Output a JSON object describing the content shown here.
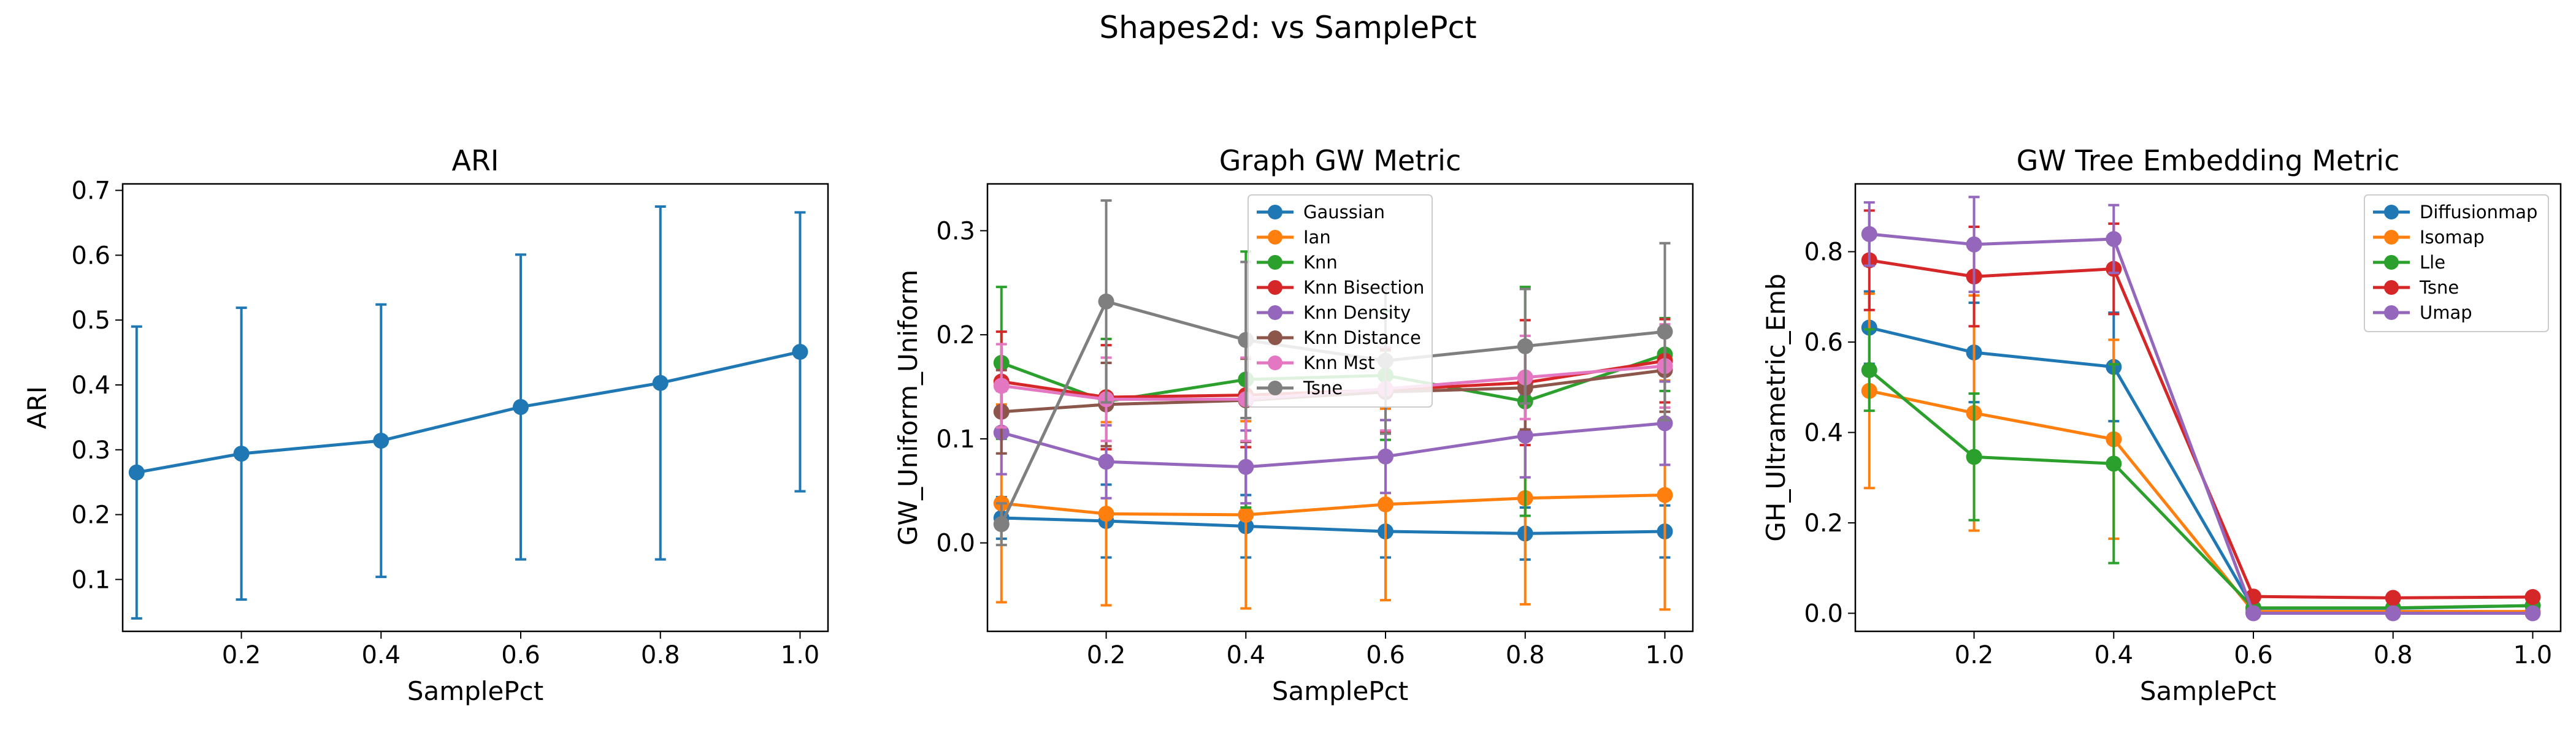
{
  "figure": {
    "suptitle": "Shapes2d: vs SamplePct"
  },
  "colors": {
    "blue": "#1f77b4",
    "orange": "#ff7f0e",
    "green": "#2ca02c",
    "red": "#d62728",
    "purple": "#9467bd",
    "brown": "#8c564b",
    "pink": "#e377c2",
    "gray": "#7f7f7f"
  },
  "chart_data": [
    {
      "type": "line",
      "title": "ARI",
      "xlabel": "SamplePct",
      "ylabel": "ARI",
      "xlim": [
        0.03,
        1.04
      ],
      "ylim": [
        0.02,
        0.71
      ],
      "xticks": [
        0.2,
        0.4,
        0.6,
        0.8,
        1.0
      ],
      "xtick_labels": [
        "0.2",
        "0.4",
        "0.6",
        "0.8",
        "1.0"
      ],
      "yticks": [
        0.1,
        0.2,
        0.3,
        0.4,
        0.5,
        0.6,
        0.7
      ],
      "ytick_labels": [
        "0.1",
        "0.2",
        "0.3",
        "0.4",
        "0.5",
        "0.6",
        "0.7"
      ],
      "grid": false,
      "legend": null,
      "x": [
        0.05,
        0.2,
        0.4,
        0.6,
        0.8,
        1.0
      ],
      "series": [
        {
          "color": "#1f77b4",
          "y": [
            0.265,
            0.294,
            0.314,
            0.366,
            0.403,
            0.451
          ],
          "err": [
            0.225,
            0.225,
            0.21,
            0.235,
            0.272,
            0.215
          ]
        }
      ]
    },
    {
      "type": "line",
      "title": "Graph GW Metric",
      "xlabel": "SamplePct",
      "ylabel": "GW_Uniform_Uniform",
      "xlim": [
        0.03,
        1.04
      ],
      "ylim": [
        -0.085,
        0.345
      ],
      "xticks": [
        0.2,
        0.4,
        0.6,
        0.8,
        1.0
      ],
      "xtick_labels": [
        "0.2",
        "0.4",
        "0.6",
        "0.8",
        "1.0"
      ],
      "yticks": [
        0.0,
        0.1,
        0.2,
        0.3
      ],
      "ytick_labels": [
        "0.0",
        "0.1",
        "0.2",
        "0.3"
      ],
      "grid": false,
      "legend": "upper-center",
      "x": [
        0.05,
        0.2,
        0.4,
        0.6,
        0.8,
        1.0
      ],
      "series": [
        {
          "name": "Gaussian",
          "color": "#1f77b4",
          "y": [
            0.024,
            0.021,
            0.016,
            0.011,
            0.009,
            0.011
          ],
          "err": [
            0.02,
            0.035,
            0.03,
            0.025,
            0.025,
            0.025
          ]
        },
        {
          "name": "Ian",
          "color": "#ff7f0e",
          "y": [
            0.038,
            0.028,
            0.027,
            0.037,
            0.043,
            0.046
          ],
          "err": [
            0.095,
            0.088,
            0.09,
            0.092,
            0.102,
            0.11
          ]
        },
        {
          "name": "Knn",
          "color": "#2ca02c",
          "y": [
            0.173,
            0.136,
            0.157,
            0.161,
            0.136,
            0.181
          ],
          "err": [
            0.073,
            0.06,
            0.123,
            0.062,
            0.11,
            0.035
          ]
        },
        {
          "name": "Knn Bisection",
          "color": "#d62728",
          "y": [
            0.155,
            0.14,
            0.142,
            0.147,
            0.154,
            0.175
          ],
          "err": [
            0.048,
            0.05,
            0.05,
            0.04,
            0.06,
            0.04
          ]
        },
        {
          "name": "Knn Density",
          "color": "#9467bd",
          "y": [
            0.106,
            0.078,
            0.073,
            0.083,
            0.103,
            0.115
          ],
          "err": [
            0.04,
            0.035,
            0.035,
            0.035,
            0.04,
            0.04
          ]
        },
        {
          "name": "Knn Distance",
          "color": "#8c564b",
          "y": [
            0.126,
            0.133,
            0.137,
            0.145,
            0.149,
            0.166
          ],
          "err": [
            0.04,
            0.04,
            0.04,
            0.04,
            0.04,
            0.04
          ]
        },
        {
          "name": "Knn Mst",
          "color": "#e377c2",
          "y": [
            0.151,
            0.138,
            0.138,
            0.148,
            0.159,
            0.17
          ],
          "err": [
            0.04,
            0.04,
            0.04,
            0.04,
            0.04,
            0.04
          ]
        },
        {
          "name": "Tsne",
          "color": "#7f7f7f",
          "y": [
            0.018,
            0.232,
            0.195,
            0.175,
            0.189,
            0.203
          ],
          "err": [
            0.02,
            0.097,
            0.075,
            0.07,
            0.055,
            0.085
          ]
        }
      ]
    },
    {
      "type": "line",
      "title": "GW Tree Embedding Metric",
      "xlabel": "SamplePct",
      "ylabel": "GH_Ultrametric_Emb",
      "xlim": [
        0.03,
        1.04
      ],
      "ylim": [
        -0.04,
        0.95
      ],
      "xticks": [
        0.2,
        0.4,
        0.6,
        0.8,
        1.0
      ],
      "xtick_labels": [
        "0.2",
        "0.4",
        "0.6",
        "0.8",
        "1.0"
      ],
      "yticks": [
        0.0,
        0.2,
        0.4,
        0.6,
        0.8
      ],
      "ytick_labels": [
        "0.0",
        "0.2",
        "0.4",
        "0.6",
        "0.8"
      ],
      "grid": false,
      "legend": "top-right",
      "x": [
        0.05,
        0.2,
        0.4,
        0.6,
        0.8,
        1.0
      ],
      "series": [
        {
          "name": "Diffusionmap",
          "color": "#1f77b4",
          "y": [
            0.632,
            0.577,
            0.545,
            0.011,
            0.011,
            0.017
          ],
          "err": [
            0.08,
            0.11,
            0.12,
            0.01,
            0.005,
            0.005
          ]
        },
        {
          "name": "Isomap",
          "color": "#ff7f0e",
          "y": [
            0.492,
            0.443,
            0.385,
            0.004,
            0.004,
            0.004
          ],
          "err": [
            0.215,
            0.26,
            0.22,
            0.005,
            0.005,
            0.005
          ]
        },
        {
          "name": "Lle",
          "color": "#2ca02c",
          "y": [
            0.538,
            0.346,
            0.331,
            0.012,
            0.012,
            0.017
          ],
          "err": [
            0.09,
            0.14,
            0.22,
            0.01,
            0.01,
            0.01
          ]
        },
        {
          "name": "Tsne",
          "color": "#d62728",
          "y": [
            0.781,
            0.745,
            0.762,
            0.037,
            0.034,
            0.036
          ],
          "err": [
            0.11,
            0.11,
            0.1,
            0.005,
            0.005,
            0.005
          ]
        },
        {
          "name": "Umap",
          "color": "#9467bd",
          "y": [
            0.839,
            0.816,
            0.828,
            0.0,
            0.0,
            0.0
          ],
          "err": [
            0.07,
            0.105,
            0.075,
            0.0,
            0.0,
            0.0
          ]
        }
      ]
    }
  ]
}
